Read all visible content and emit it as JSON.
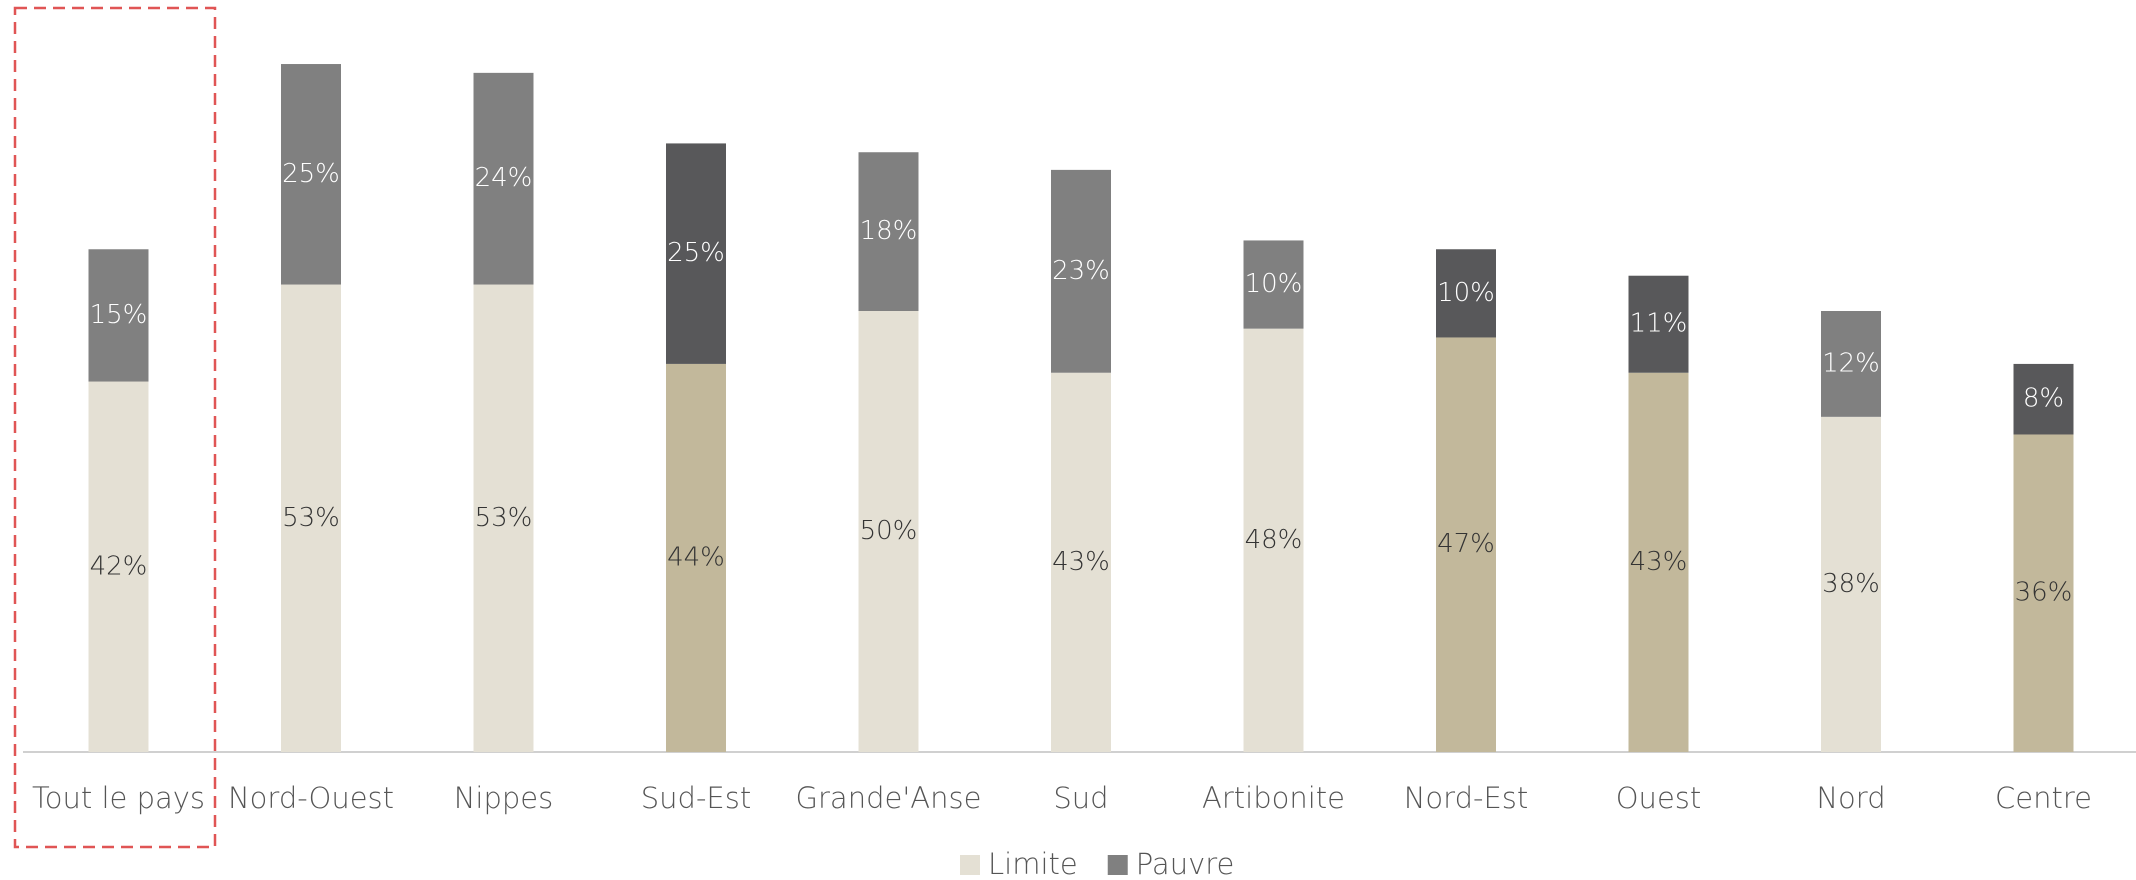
{
  "chart_data": {
    "type": "stacked_bar",
    "categories": [
      "Tout le pays",
      "Nord-Ouest",
      "Nippes",
      "Sud-Est",
      "Grande'Anse",
      "Sud",
      "Artibonite",
      "Nord-Est",
      "Ouest",
      "Nord",
      "Centre"
    ],
    "series": [
      {
        "name": "Limite",
        "color": "#e4e0d4",
        "colors": [
          "#e4e0d4",
          "#e4e0d4",
          "#e4e0d4",
          "#c2b89b",
          "#e4e0d4",
          "#e4e0d4",
          "#e4e0d4",
          "#c2b89b",
          "#c2b89b",
          "#e4e0d4",
          "#c2b89b"
        ],
        "values": [
          42,
          53,
          53,
          44,
          50,
          43,
          48,
          47,
          43,
          38,
          36
        ],
        "value_labels": [
          "42%",
          "53%",
          "53%",
          "44%",
          "50%",
          "43%",
          "48%",
          "47%",
          "43%",
          "38%",
          "36%"
        ]
      },
      {
        "name": "Pauvre",
        "color": "#808080",
        "colors": [
          "#808080",
          "#808080",
          "#808080",
          "#58585a",
          "#808080",
          "#808080",
          "#808080",
          "#58585a",
          "#58585a",
          "#808080",
          "#58585a"
        ],
        "values": [
          15,
          25,
          24,
          25,
          18,
          23,
          10,
          10,
          11,
          12,
          8
        ],
        "value_labels": [
          "15%",
          "25%",
          "24%",
          "25%",
          "18%",
          "23%",
          "10%",
          "10%",
          "11%",
          "12%",
          "8%"
        ]
      }
    ],
    "legend": "bottom"
  }
}
